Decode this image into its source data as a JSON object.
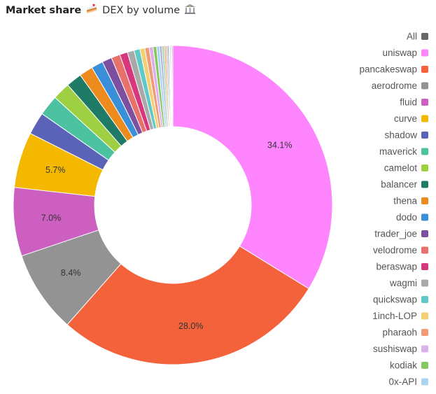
{
  "header": {
    "title": "Market share",
    "title_icon": "cake-icon",
    "subtitle": "DEX by volume",
    "subtitle_icon": "bank-icon"
  },
  "chart_data": {
    "type": "pie",
    "variant": "donut",
    "title": "Market share",
    "subtitle": "DEX by volume",
    "legend_position": "right",
    "legend_all_label": "All",
    "legend_all_color": "#666666",
    "slices": [
      {
        "name": "uniswap",
        "value": 34.1,
        "color": "#ff85ff",
        "label": "34.1%"
      },
      {
        "name": "pancakeswap",
        "value": 28.0,
        "color": "#f4623c",
        "label": "28.0%"
      },
      {
        "name": "aerodrome",
        "value": 8.4,
        "color": "#939393",
        "label": "8.4%"
      },
      {
        "name": "fluid",
        "value": 7.0,
        "color": "#cc5fbf",
        "label": "7.0%"
      },
      {
        "name": "curve",
        "value": 5.7,
        "color": "#f5b800",
        "label": "5.7%"
      },
      {
        "name": "shadow",
        "value": 2.3,
        "color": "#5b63b8"
      },
      {
        "name": "maverick",
        "value": 2.1,
        "color": "#4dc2a0"
      },
      {
        "name": "camelot",
        "value": 1.8,
        "color": "#9fcf42"
      },
      {
        "name": "balancer",
        "value": 1.6,
        "color": "#1f7a66"
      },
      {
        "name": "thena",
        "value": 1.4,
        "color": "#ee8b1e"
      },
      {
        "name": "dodo",
        "value": 1.2,
        "color": "#3a8fd9"
      },
      {
        "name": "trader_joe",
        "value": 1.0,
        "color": "#7c4fa1"
      },
      {
        "name": "velodrome",
        "value": 0.9,
        "color": "#e8726b"
      },
      {
        "name": "beraswap",
        "value": 0.8,
        "color": "#d6377d"
      },
      {
        "name": "wagmi",
        "value": 0.7,
        "color": "#a9a9a9"
      },
      {
        "name": "quickswap",
        "value": 0.6,
        "color": "#5fc9c9"
      },
      {
        "name": "1inch-LOP",
        "value": 0.5,
        "color": "#f3cf72"
      },
      {
        "name": "pharaoh",
        "value": 0.45,
        "color": "#f19a78"
      },
      {
        "name": "sushiswap",
        "value": 0.4,
        "color": "#dcb0ea"
      },
      {
        "name": "kodiak",
        "value": 0.35,
        "color": "#84c85e"
      },
      {
        "name": "0x-API",
        "value": 0.3,
        "color": "#a9d3f0"
      },
      {
        "name": "",
        "value": 0.25,
        "color": "#b0b0d8"
      },
      {
        "name": "",
        "value": 0.2,
        "color": "#8fcfb6"
      },
      {
        "name": "",
        "value": 0.2,
        "color": "#f2b266"
      },
      {
        "name": "",
        "value": 0.15,
        "color": "#c9a0c0"
      },
      {
        "name": "",
        "value": 0.15,
        "color": "#7aa7c7"
      },
      {
        "name": "",
        "value": 0.1,
        "color": "#cccccc"
      },
      {
        "name": "",
        "value": 0.1,
        "color": "#9e9e6e"
      },
      {
        "name": "",
        "value": 0.1,
        "color": "#e0a8a8"
      },
      {
        "name": "",
        "value": 0.1,
        "color": "#6e8e6e"
      }
    ]
  }
}
